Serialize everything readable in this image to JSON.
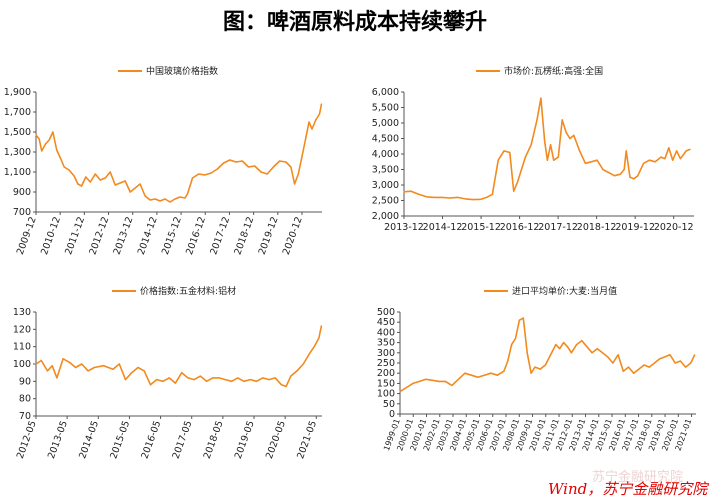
{
  "title": "图：啤酒原料成本持续攀升",
  "source": "Wind，苏宁金融研究院",
  "watermark": "苏宁金融研究院",
  "line_color": "#f28a1e",
  "chart_data": [
    {
      "type": "line",
      "legend": "中国玻璃价格指数",
      "ylim": [
        700,
        1900
      ],
      "yticks": [
        "700",
        "900",
        "1,100",
        "1,300",
        "1,500",
        "1,700",
        "1,900"
      ],
      "xticks": [
        "2009-12",
        "2010-12",
        "2011-12",
        "2012-12",
        "2013-12",
        "2014-12",
        "2015-12",
        "2016-12",
        "2017-12",
        "2018-12",
        "2019-12",
        "2020-12"
      ],
      "xrange": [
        2009.92,
        2021.4
      ],
      "x": [
        2009.92,
        2010.05,
        2010.15,
        2010.3,
        2010.45,
        2010.6,
        2010.75,
        2010.9,
        2011.05,
        2011.25,
        2011.45,
        2011.6,
        2011.75,
        2011.92,
        2012.1,
        2012.3,
        2012.5,
        2012.7,
        2012.9,
        2013.1,
        2013.3,
        2013.5,
        2013.7,
        2013.9,
        2014.1,
        2014.3,
        2014.5,
        2014.7,
        2014.9,
        2015.1,
        2015.3,
        2015.5,
        2015.7,
        2015.9,
        2016.0,
        2016.2,
        2016.45,
        2016.7,
        2016.95,
        2017.2,
        2017.45,
        2017.7,
        2017.95,
        2018.2,
        2018.45,
        2018.7,
        2018.95,
        2019.2,
        2019.45,
        2019.7,
        2019.95,
        2020.15,
        2020.3,
        2020.45,
        2020.6,
        2020.75,
        2020.88,
        2021.0,
        2021.15,
        2021.3,
        2021.38
      ],
      "values": [
        1470,
        1430,
        1310,
        1380,
        1420,
        1500,
        1320,
        1240,
        1150,
        1120,
        1060,
        980,
        960,
        1050,
        1000,
        1080,
        1020,
        1040,
        1100,
        970,
        990,
        1010,
        900,
        940,
        980,
        860,
        820,
        830,
        810,
        830,
        800,
        830,
        850,
        840,
        880,
        1040,
        1080,
        1070,
        1090,
        1130,
        1190,
        1220,
        1200,
        1210,
        1150,
        1160,
        1100,
        1080,
        1150,
        1210,
        1200,
        1150,
        980,
        1080,
        1260,
        1440,
        1600,
        1530,
        1620,
        1680,
        1780
      ]
    },
    {
      "type": "line",
      "legend": "市场价:瓦楞纸:高强:全国",
      "ylim": [
        2000,
        6000
      ],
      "yticks": [
        "2,000",
        "2,500",
        "3,000",
        "3,500",
        "4,000",
        "4,500",
        "5,000",
        "5,500",
        "6,000"
      ],
      "xticks": [
        "2013-12",
        "2014-12",
        "2015-12",
        "2016-12",
        "2017-12",
        "2018-12",
        "2019-12",
        "2020-12"
      ],
      "xrange": [
        2013.92,
        2021.4
      ],
      "x": [
        2013.92,
        2014.1,
        2014.3,
        2014.5,
        2014.7,
        2014.9,
        2015.1,
        2015.3,
        2015.5,
        2015.7,
        2015.9,
        2016.05,
        2016.2,
        2016.35,
        2016.5,
        2016.65,
        2016.75,
        2016.85,
        2016.95,
        2017.05,
        2017.2,
        2017.35,
        2017.45,
        2017.55,
        2017.62,
        2017.7,
        2017.78,
        2017.9,
        2018.0,
        2018.1,
        2018.2,
        2018.3,
        2018.45,
        2018.6,
        2018.75,
        2018.9,
        2019.05,
        2019.2,
        2019.35,
        2019.5,
        2019.6,
        2019.65,
        2019.75,
        2019.85,
        2019.95,
        2020.1,
        2020.25,
        2020.4,
        2020.55,
        2020.65,
        2020.75,
        2020.85,
        2020.95,
        2021.05,
        2021.2,
        2021.3
      ],
      "values": [
        2780,
        2800,
        2700,
        2620,
        2600,
        2600,
        2580,
        2600,
        2550,
        2530,
        2540,
        2600,
        2700,
        3800,
        4100,
        4050,
        2800,
        3100,
        3500,
        3900,
        4300,
        5100,
        5800,
        4400,
        3800,
        4300,
        3800,
        3900,
        5100,
        4700,
        4500,
        4600,
        4100,
        3700,
        3750,
        3800,
        3500,
        3400,
        3300,
        3350,
        3500,
        4100,
        3250,
        3200,
        3300,
        3700,
        3800,
        3750,
        3900,
        3850,
        4200,
        3800,
        4100,
        3850,
        4100,
        4150
      ]
    },
    {
      "type": "line",
      "legend": "价格指数:五金材料:铝材",
      "ylim": [
        70,
        130
      ],
      "yticks": [
        "70",
        "80",
        "90",
        "100",
        "110",
        "120",
        "130"
      ],
      "xticks": [
        "2012-05",
        "2013-05",
        "2014-05",
        "2015-05",
        "2016-05",
        "2017-05",
        "2018-05",
        "2019-05",
        "2020-05",
        "2021-05"
      ],
      "xrange": [
        2012.33,
        2021.5
      ],
      "x": [
        2012.33,
        2012.5,
        2012.7,
        2012.85,
        2013.0,
        2013.2,
        2013.4,
        2013.6,
        2013.8,
        2014.0,
        2014.2,
        2014.5,
        2014.8,
        2015.0,
        2015.2,
        2015.4,
        2015.6,
        2015.8,
        2016.0,
        2016.2,
        2016.4,
        2016.6,
        2016.8,
        2017.0,
        2017.2,
        2017.4,
        2017.6,
        2017.8,
        2018.0,
        2018.2,
        2018.4,
        2018.6,
        2018.8,
        2019.0,
        2019.2,
        2019.4,
        2019.6,
        2019.8,
        2020.0,
        2020.2,
        2020.35,
        2020.5,
        2020.7,
        2020.9,
        2021.1,
        2021.25,
        2021.4,
        2021.48
      ],
      "values": [
        100,
        102,
        96,
        99,
        92,
        103,
        101,
        98,
        100,
        96,
        98,
        99,
        97,
        100,
        91,
        95,
        98,
        96,
        88,
        91,
        90,
        92,
        89,
        95,
        92,
        91,
        93,
        90,
        92,
        92,
        91,
        90,
        92,
        90,
        91,
        90,
        92,
        91,
        92,
        88,
        87,
        93,
        96,
        100,
        106,
        110,
        115,
        122
      ]
    },
    {
      "type": "line",
      "legend": "进口平均单价:大麦:当月值",
      "ylim": [
        0,
        500
      ],
      "yticks": [
        "0",
        "50",
        "100",
        "150",
        "200",
        "250",
        "300",
        "350",
        "400",
        "450",
        "500"
      ],
      "xticks": [
        "1999-01",
        "2000-01",
        "2001-01",
        "2002-01",
        "2003-01",
        "2004-01",
        "2005-01",
        "2006-01",
        "2007-01",
        "2008-01",
        "2009-01",
        "2010-01",
        "2011-01",
        "2012-01",
        "2013-01",
        "2014-01",
        "2015-01",
        "2016-01",
        "2017-01",
        "2018-01",
        "2019-01",
        "2020-01",
        "2021-01"
      ],
      "xrange": [
        1999.0,
        2021.8
      ],
      "x": [
        1999.0,
        1999.5,
        2000.0,
        2000.5,
        2001.0,
        2001.5,
        2002.0,
        2002.5,
        2003.0,
        2003.5,
        2004.0,
        2004.5,
        2005.0,
        2005.5,
        2006.0,
        2006.5,
        2007.0,
        2007.3,
        2007.6,
        2007.9,
        2008.2,
        2008.5,
        2008.8,
        2009.1,
        2009.4,
        2009.8,
        2010.2,
        2010.6,
        2011.0,
        2011.3,
        2011.6,
        2011.9,
        2012.2,
        2012.6,
        2013.0,
        2013.4,
        2013.8,
        2014.2,
        2014.6,
        2015.0,
        2015.4,
        2015.8,
        2016.2,
        2016.6,
        2017.0,
        2017.4,
        2017.8,
        2018.2,
        2018.6,
        2019.0,
        2019.4,
        2019.8,
        2020.2,
        2020.6,
        2021.0,
        2021.4,
        2021.7
      ],
      "values": [
        110,
        130,
        150,
        160,
        170,
        165,
        160,
        160,
        140,
        170,
        200,
        190,
        180,
        190,
        200,
        190,
        210,
        260,
        340,
        370,
        460,
        470,
        300,
        200,
        230,
        220,
        240,
        290,
        340,
        320,
        350,
        330,
        300,
        340,
        360,
        330,
        300,
        320,
        300,
        280,
        250,
        290,
        210,
        230,
        200,
        220,
        240,
        230,
        250,
        270,
        280,
        290,
        250,
        260,
        230,
        250,
        290
      ]
    }
  ]
}
